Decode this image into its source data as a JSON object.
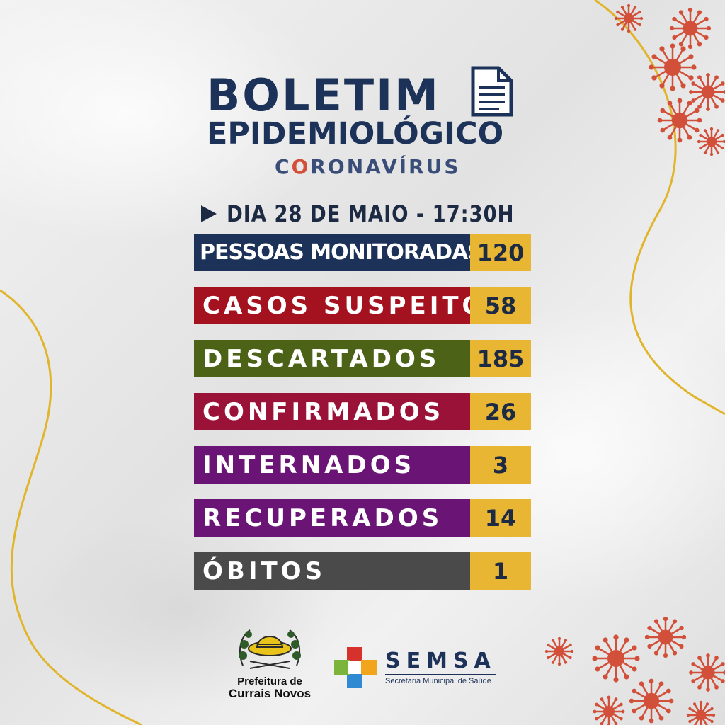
{
  "header": {
    "line1": "BOLETIM",
    "line2": "EPIDEMIOLÓGICO",
    "line3_pre": "C",
    "line3_o": "O",
    "line3_post": "RONAVÍRUS"
  },
  "date": "DIA 28 DE MAIO - 17:30H",
  "stats": [
    {
      "label": "PESSOAS MONITORADAS",
      "value": "120",
      "color": "#1d3259"
    },
    {
      "label": "CASOS SUSPEITOS",
      "value": "58",
      "color": "#a3121e"
    },
    {
      "label": "DESCARTADOS",
      "value": "185",
      "color": "#4c6317"
    },
    {
      "label": "CONFIRMADOS",
      "value": "26",
      "color": "#9a1238"
    },
    {
      "label": "INTERNADOS",
      "value": "3",
      "color": "#6a1575"
    },
    {
      "label": "RECUPERADOS",
      "value": "14",
      "color": "#6a1575"
    },
    {
      "label": "ÓBITOS",
      "value": "1",
      "color": "#4a4a4a"
    }
  ],
  "footer": {
    "prefeitura_line1": "Prefeitura de",
    "prefeitura_line2": "Currais Novos",
    "semsa_name": "SEMSA",
    "semsa_sub": "Secretaria Municipal de Saúde"
  },
  "colors": {
    "navy": "#1d3259",
    "gold": "#e9b634",
    "virus": "#d2503a",
    "curve": "#e0b52c"
  }
}
